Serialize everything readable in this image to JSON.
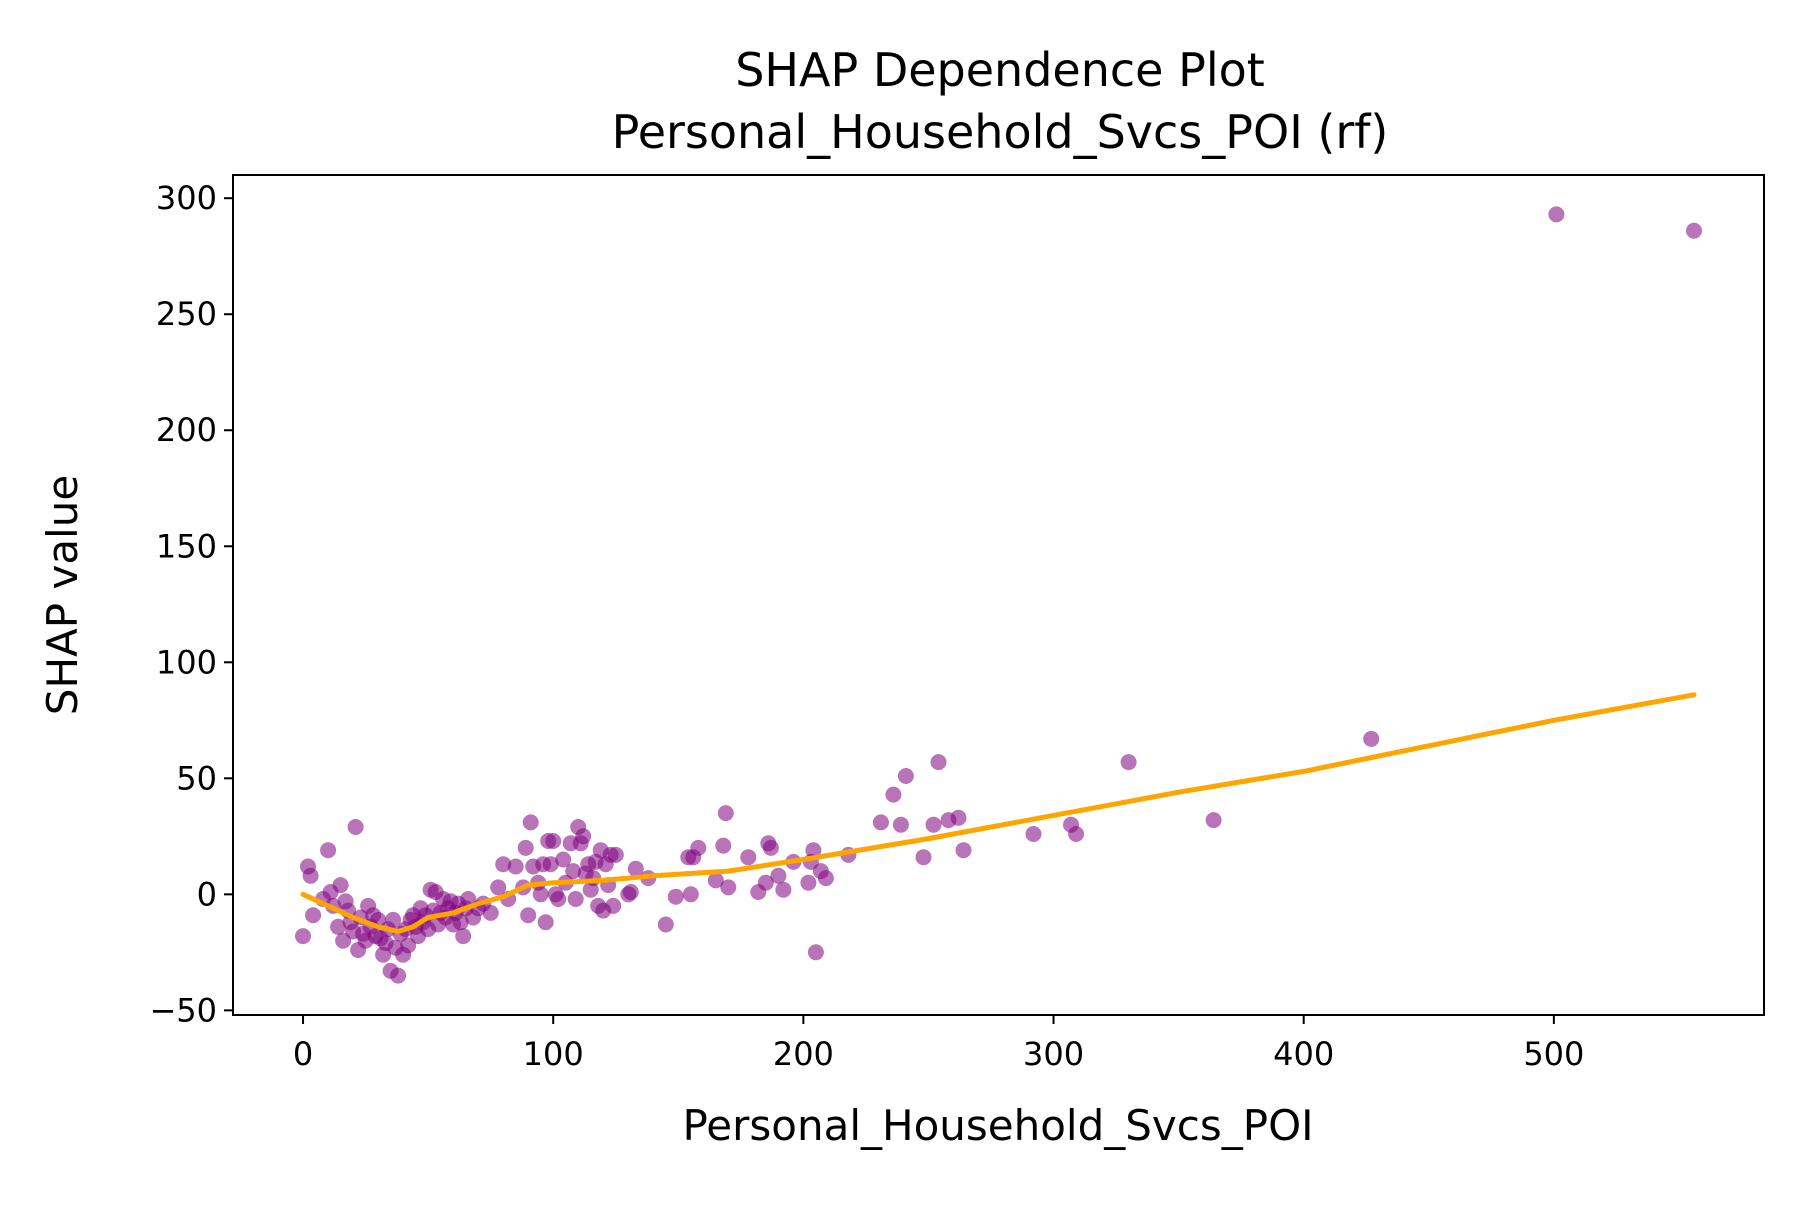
{
  "chart_data": {
    "type": "scatter",
    "title": "SHAP Dependence Plot",
    "subtitle": "Personal_Household_Svcs_POI (rf)",
    "xlabel": "Personal_Household_Svcs_POI",
    "ylabel": "SHAP value",
    "xlim": [
      -28,
      584
    ],
    "ylim": [
      -52,
      310
    ],
    "x_ticks": [
      0,
      100,
      200,
      300,
      400,
      500
    ],
    "y_ticks": [
      -50,
      0,
      50,
      100,
      150,
      200,
      250,
      300
    ],
    "x_tick_labels": [
      "0",
      "100",
      "200",
      "300",
      "400",
      "500"
    ],
    "y_tick_labels": [
      "−50",
      "0",
      "50",
      "100",
      "150",
      "200",
      "250",
      "300"
    ],
    "grid": false,
    "colors": {
      "points": "#800080",
      "trend": "#ffa500"
    },
    "series": [
      {
        "type": "scatter",
        "points": [
          [
            0,
            -18
          ],
          [
            2,
            12
          ],
          [
            3,
            8
          ],
          [
            4,
            -9
          ],
          [
            8,
            -2
          ],
          [
            10,
            19
          ],
          [
            11,
            1
          ],
          [
            12,
            -5
          ],
          [
            14,
            -14
          ],
          [
            15,
            4
          ],
          [
            16,
            -20
          ],
          [
            17,
            -3
          ],
          [
            18,
            -7
          ],
          [
            19,
            -12
          ],
          [
            20,
            -16
          ],
          [
            21,
            29
          ],
          [
            22,
            -24
          ],
          [
            23,
            -10
          ],
          [
            24,
            -17
          ],
          [
            25,
            -20
          ],
          [
            26,
            -5
          ],
          [
            27,
            -14
          ],
          [
            28,
            -9
          ],
          [
            29,
            -18
          ],
          [
            30,
            -11
          ],
          [
            31,
            -19
          ],
          [
            32,
            -26
          ],
          [
            33,
            -21
          ],
          [
            34,
            -15
          ],
          [
            35,
            -33
          ],
          [
            36,
            -11
          ],
          [
            37,
            -23
          ],
          [
            38,
            -35
          ],
          [
            39,
            -17
          ],
          [
            40,
            -26
          ],
          [
            41,
            -15
          ],
          [
            42,
            -22
          ],
          [
            43,
            -11
          ],
          [
            44,
            -9
          ],
          [
            45,
            -14
          ],
          [
            46,
            -18
          ],
          [
            47,
            -6
          ],
          [
            48,
            -12
          ],
          [
            49,
            -9
          ],
          [
            50,
            -15
          ],
          [
            51,
            2
          ],
          [
            52,
            -7
          ],
          [
            53,
            1
          ],
          [
            54,
            -13
          ],
          [
            55,
            -8
          ],
          [
            56,
            -2
          ],
          [
            57,
            -10
          ],
          [
            58,
            -6
          ],
          [
            59,
            -3
          ],
          [
            60,
            -13
          ],
          [
            61,
            -8
          ],
          [
            62,
            -4
          ],
          [
            63,
            -12
          ],
          [
            64,
            -18
          ],
          [
            65,
            -6
          ],
          [
            66,
            -2
          ],
          [
            68,
            -10
          ],
          [
            70,
            -6
          ],
          [
            72,
            -4
          ],
          [
            75,
            -8
          ],
          [
            78,
            3
          ],
          [
            80,
            13
          ],
          [
            82,
            -2
          ],
          [
            85,
            12
          ],
          [
            88,
            3
          ],
          [
            89,
            20
          ],
          [
            90,
            -9
          ],
          [
            91,
            31
          ],
          [
            92,
            12
          ],
          [
            94,
            5
          ],
          [
            95,
            0
          ],
          [
            96,
            13
          ],
          [
            97,
            -12
          ],
          [
            98,
            23
          ],
          [
            99,
            13
          ],
          [
            100,
            23
          ],
          [
            101,
            0
          ],
          [
            102,
            -2
          ],
          [
            104,
            15
          ],
          [
            105,
            5
          ],
          [
            107,
            22
          ],
          [
            108,
            10
          ],
          [
            109,
            -2
          ],
          [
            110,
            29
          ],
          [
            111,
            22
          ],
          [
            112,
            25
          ],
          [
            113,
            9
          ],
          [
            114,
            13
          ],
          [
            115,
            2
          ],
          [
            116,
            7
          ],
          [
            117,
            14
          ],
          [
            118,
            -5
          ],
          [
            119,
            19
          ],
          [
            120,
            -7
          ],
          [
            121,
            13
          ],
          [
            122,
            4
          ],
          [
            123,
            17
          ],
          [
            124,
            -5
          ],
          [
            125,
            17
          ],
          [
            130,
            0
          ],
          [
            131,
            1
          ],
          [
            133,
            11
          ],
          [
            138,
            7
          ],
          [
            145,
            -13
          ],
          [
            149,
            -1
          ],
          [
            154,
            16
          ],
          [
            155,
            0
          ],
          [
            156,
            16
          ],
          [
            158,
            20
          ],
          [
            165,
            6
          ],
          [
            168,
            21
          ],
          [
            169,
            35
          ],
          [
            170,
            3
          ],
          [
            178,
            16
          ],
          [
            182,
            1
          ],
          [
            185,
            5
          ],
          [
            186,
            22
          ],
          [
            187,
            20
          ],
          [
            190,
            8
          ],
          [
            192,
            2
          ],
          [
            196,
            14
          ],
          [
            202,
            5
          ],
          [
            203,
            14
          ],
          [
            204,
            19
          ],
          [
            205,
            -25
          ],
          [
            207,
            10
          ],
          [
            209,
            7
          ],
          [
            218,
            17
          ],
          [
            231,
            31
          ],
          [
            236,
            43
          ],
          [
            239,
            30
          ],
          [
            241,
            51
          ],
          [
            248,
            16
          ],
          [
            252,
            30
          ],
          [
            254,
            57
          ],
          [
            258,
            32
          ],
          [
            262,
            33
          ],
          [
            264,
            19
          ],
          [
            292,
            26
          ],
          [
            307,
            30
          ],
          [
            309,
            26
          ],
          [
            330,
            57
          ],
          [
            364,
            32
          ],
          [
            427,
            67
          ],
          [
            501,
            293
          ],
          [
            556,
            286
          ]
        ]
      },
      {
        "type": "line",
        "points": [
          [
            0,
            0
          ],
          [
            10,
            -5
          ],
          [
            20,
            -10
          ],
          [
            30,
            -14
          ],
          [
            38,
            -16
          ],
          [
            44,
            -14
          ],
          [
            50,
            -10
          ],
          [
            60,
            -8
          ],
          [
            70,
            -4
          ],
          [
            80,
            -1
          ],
          [
            90,
            4
          ],
          [
            100,
            5
          ],
          [
            120,
            6
          ],
          [
            140,
            8
          ],
          [
            170,
            10
          ],
          [
            200,
            15
          ],
          [
            250,
            24
          ],
          [
            300,
            34
          ],
          [
            350,
            44
          ],
          [
            400,
            53
          ],
          [
            450,
            64
          ],
          [
            500,
            75
          ],
          [
            556,
            86
          ]
        ]
      }
    ]
  }
}
